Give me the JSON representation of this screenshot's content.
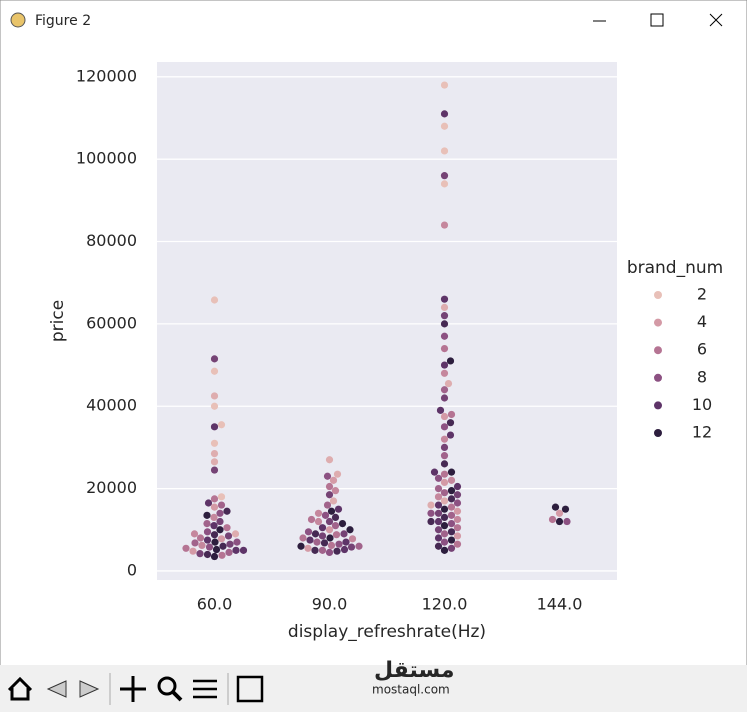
{
  "window": {
    "title": "Figure 2"
  },
  "watermark": [
    "مستقل",
    "mostaql.com"
  ],
  "chart_data": {
    "type": "swarm",
    "x_label": "display_refreshrate(Hz)",
    "y_label": "price",
    "categories": [
      "60.0",
      "90.0",
      "120.0",
      "144.0"
    ],
    "values": [
      [
        65800,
        51500,
        48500,
        42500,
        40000,
        35500,
        35000,
        31000,
        28500,
        26500,
        24500,
        18000,
        17500,
        16500,
        16000,
        15500,
        14500,
        14000,
        13500,
        13000,
        12000,
        11500,
        11000,
        10500,
        10000,
        9500,
        9000,
        8800,
        8500,
        8000,
        7800,
        7500,
        7000,
        6800,
        6500,
        6200,
        6000,
        5800,
        5500,
        5200,
        5000,
        4800,
        4500,
        4200,
        4000,
        3800,
        3500,
        9000,
        7000,
        5000
      ],
      [
        27000,
        23500,
        23000,
        22000,
        20500,
        19500,
        18500,
        17000,
        16000,
        15000,
        14500,
        14000,
        13500,
        13000,
        12500,
        12000,
        11500,
        11000,
        10500,
        10000,
        9500,
        9000,
        8800,
        8500,
        8000,
        7800,
        7500,
        7000,
        6800,
        6500,
        6200,
        6000,
        5800,
        5500,
        5200,
        5000,
        4800,
        4500,
        12000,
        10000,
        9000,
        8000,
        7000,
        6000,
        5000
      ],
      [
        118000,
        111000,
        108000,
        102000,
        96000,
        94000,
        84000,
        66000,
        64000,
        62000,
        60000,
        57000,
        54000,
        51000,
        50000,
        48000,
        45500,
        44000,
        42000,
        39000,
        38000,
        37500,
        36000,
        35000,
        33000,
        32000,
        30000,
        28000,
        26000,
        24000,
        23500,
        22500,
        21500,
        20500,
        19500,
        19000,
        18500,
        18000,
        17500,
        17000,
        16500,
        16000,
        15500,
        15000,
        14500,
        14000,
        13500,
        13000,
        12500,
        12000,
        11500,
        11000,
        10500,
        10000,
        9500,
        9000,
        8500,
        8000,
        7500,
        7000,
        6500,
        6000,
        5500,
        5000,
        24000,
        22000,
        20000,
        16000,
        14000,
        12000
      ],
      [
        15500,
        15000,
        14000,
        12500,
        12000,
        12000
      ]
    ],
    "hue": [
      [
        2,
        9,
        2,
        3,
        2,
        2,
        10,
        2,
        3,
        3,
        9,
        2,
        6,
        10,
        7,
        4,
        11,
        8,
        12,
        5,
        9,
        7,
        10,
        6,
        12,
        8,
        5,
        11,
        9,
        6,
        4,
        10,
        12,
        7,
        9,
        5,
        11,
        8,
        6,
        12,
        10,
        4,
        7,
        9,
        11,
        6,
        12,
        3,
        8,
        10
      ],
      [
        3,
        3,
        8,
        4,
        6,
        5,
        9,
        3,
        7,
        10,
        12,
        5,
        8,
        11,
        6,
        9,
        12,
        7,
        10,
        4,
        8,
        11,
        6,
        9,
        12,
        5,
        10,
        7,
        11,
        8,
        6,
        12,
        9,
        4,
        10,
        7,
        11,
        8,
        5,
        12,
        9,
        6,
        10,
        7,
        11
      ],
      [
        2,
        10,
        2,
        2,
        9,
        2,
        5,
        10,
        3,
        9,
        11,
        8,
        6,
        12,
        10,
        5,
        3,
        7,
        9,
        10,
        6,
        4,
        11,
        8,
        10,
        5,
        9,
        7,
        11,
        12,
        6,
        8,
        4,
        10,
        12,
        7,
        9,
        5,
        11,
        3,
        8,
        10,
        6,
        12,
        4,
        9,
        7,
        11,
        5,
        10,
        8,
        12,
        6,
        9,
        11,
        7,
        4,
        10,
        12,
        8,
        6,
        11,
        9,
        12,
        10,
        5,
        7,
        3,
        8,
        11
      ],
      [
        12,
        12,
        4,
        6,
        12,
        8
      ]
    ],
    "legend": {
      "title": "brand_num",
      "entries": [
        2,
        4,
        6,
        8,
        10,
        12
      ],
      "colors": [
        "#e8c0b8",
        "#d49aa6",
        "#b57493",
        "#8c5182",
        "#5e3468",
        "#2d1e3e"
      ]
    },
    "ylim": [
      -2200,
      123600
    ],
    "yticks": [
      0,
      20000,
      40000,
      60000,
      80000,
      100000,
      120000
    ],
    "grid": true,
    "background": "#eaeaf2"
  }
}
